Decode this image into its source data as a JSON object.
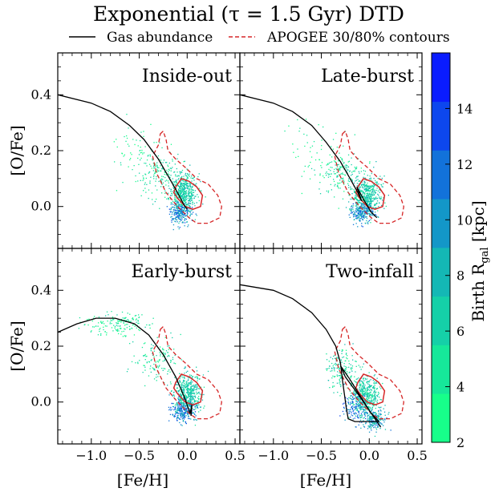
{
  "chart_data": {
    "type": "scatter",
    "title": "Exponential (τ = 1.5 Gyr) DTD",
    "legend": {
      "placement": "top",
      "entries": [
        {
          "label": "Gas abundance",
          "style": "solid",
          "color": "#000000"
        },
        {
          "label": "APOGEE 30/80% contours",
          "style": "dashed",
          "color": "#d62728"
        }
      ]
    },
    "xlabel": "[Fe/H]",
    "ylabel": "[O/Fe]",
    "xlim": [
      -1.35,
      0.55
    ],
    "ylim": [
      -0.15,
      0.55
    ],
    "xticks": [
      -1.0,
      -0.5,
      0.0,
      0.5
    ],
    "xtick_labels": [
      "−1.0",
      "−0.5",
      "0.0",
      "0.5"
    ],
    "yticks": [
      0.0,
      0.2,
      0.4
    ],
    "ytick_labels": [
      "0.0",
      "0.2",
      "0.4"
    ],
    "colorbar": {
      "label": "Birth R_gal [kpc]",
      "ticks": [
        2,
        4,
        6,
        8,
        10,
        12,
        14
      ],
      "range": [
        2,
        16
      ],
      "bins": 8,
      "colors": [
        "#17ff8a",
        "#16e89a",
        "#15d0a8",
        "#14b8b5",
        "#1397c8",
        "#1272da",
        "#0d47ee",
        "#0a1cff"
      ]
    },
    "panels": [
      {
        "title": "Inside-out",
        "gas_track": [
          [
            -1.35,
            0.4
          ],
          [
            -1.0,
            0.37
          ],
          [
            -0.8,
            0.34
          ],
          [
            -0.6,
            0.29
          ],
          [
            -0.45,
            0.24
          ],
          [
            -0.3,
            0.17
          ],
          [
            -0.2,
            0.11
          ],
          [
            -0.1,
            0.05
          ],
          [
            -0.04,
            0.01
          ],
          [
            0.0,
            -0.01
          ]
        ],
        "scatter_clusters": [
          {
            "center": [
              -0.05,
              0.05
            ],
            "spread": [
              0.12,
              0.06
            ],
            "n": 520,
            "rgal": [
              4,
              9
            ]
          },
          {
            "center": [
              -0.08,
              -0.02
            ],
            "spread": [
              0.1,
              0.03
            ],
            "n": 220,
            "rgal": [
              8,
              13
            ]
          },
          {
            "center": [
              -0.3,
              0.12
            ],
            "spread": [
              0.2,
              0.07
            ],
            "n": 160,
            "rgal": [
              3,
              7
            ]
          },
          {
            "center": [
              -0.55,
              0.2
            ],
            "spread": [
              0.25,
              0.08
            ],
            "n": 50,
            "rgal": [
              2,
              5
            ]
          }
        ]
      },
      {
        "title": "Late-burst",
        "gas_track": [
          [
            -1.35,
            0.4
          ],
          [
            -1.0,
            0.37
          ],
          [
            -0.8,
            0.34
          ],
          [
            -0.6,
            0.29
          ],
          [
            -0.45,
            0.23
          ],
          [
            -0.3,
            0.16
          ],
          [
            -0.2,
            0.1
          ],
          [
            -0.12,
            0.05
          ],
          [
            -0.08,
            0.02
          ],
          [
            -0.13,
            0.07
          ],
          [
            -0.05,
            0.02
          ],
          [
            0.02,
            -0.02
          ],
          [
            0.08,
            -0.04
          ]
        ],
        "scatter_clusters": [
          {
            "center": [
              -0.03,
              0.04
            ],
            "spread": [
              0.12,
              0.06
            ],
            "n": 520,
            "rgal": [
              4,
              9
            ]
          },
          {
            "center": [
              -0.08,
              -0.02
            ],
            "spread": [
              0.1,
              0.03
            ],
            "n": 220,
            "rgal": [
              8,
              13
            ]
          },
          {
            "center": [
              -0.3,
              0.12
            ],
            "spread": [
              0.2,
              0.07
            ],
            "n": 160,
            "rgal": [
              3,
              7
            ]
          },
          {
            "center": [
              -0.55,
              0.2
            ],
            "spread": [
              0.25,
              0.08
            ],
            "n": 50,
            "rgal": [
              2,
              5
            ]
          }
        ]
      },
      {
        "title": "Early-burst",
        "gas_track": [
          [
            -1.35,
            0.25
          ],
          [
            -1.15,
            0.28
          ],
          [
            -0.95,
            0.3
          ],
          [
            -0.75,
            0.3
          ],
          [
            -0.55,
            0.28
          ],
          [
            -0.4,
            0.24
          ],
          [
            -0.25,
            0.17
          ],
          [
            -0.12,
            0.09
          ],
          [
            -0.02,
            0.01
          ],
          [
            0.03,
            -0.04
          ],
          [
            0.05,
            -0.01
          ],
          [
            0.04,
            -0.05
          ]
        ],
        "scatter_clusters": [
          {
            "center": [
              0.0,
              0.03
            ],
            "spread": [
              0.12,
              0.06
            ],
            "n": 480,
            "rgal": [
              4,
              9
            ]
          },
          {
            "center": [
              -0.05,
              -0.03
            ],
            "spread": [
              0.1,
              0.03
            ],
            "n": 220,
            "rgal": [
              8,
              14
            ]
          },
          {
            "center": [
              -0.3,
              0.15
            ],
            "spread": [
              0.2,
              0.07
            ],
            "n": 130,
            "rgal": [
              3,
              7
            ]
          },
          {
            "center": [
              -0.75,
              0.28
            ],
            "spread": [
              0.3,
              0.03
            ],
            "n": 160,
            "rgal": [
              2,
              6
            ]
          }
        ]
      },
      {
        "title": "Two-infall",
        "gas_track": [
          [
            -1.35,
            0.42
          ],
          [
            -1.0,
            0.4
          ],
          [
            -0.8,
            0.37
          ],
          [
            -0.6,
            0.32
          ],
          [
            -0.45,
            0.26
          ],
          [
            -0.35,
            0.2
          ],
          [
            -0.3,
            0.14
          ],
          [
            -0.28,
            0.08
          ],
          [
            -0.26,
            0.03
          ],
          [
            -0.24,
            -0.02
          ],
          [
            -0.22,
            -0.06
          ],
          [
            -0.15,
            -0.07
          ],
          [
            0.05,
            -0.07
          ],
          [
            0.1,
            -0.07
          ],
          [
            0.02,
            -0.04
          ],
          [
            -0.1,
            0.02
          ],
          [
            -0.25,
            0.09
          ],
          [
            -0.3,
            0.13
          ],
          [
            -0.2,
            0.08
          ],
          [
            0.0,
            -0.03
          ],
          [
            0.12,
            -0.09
          ]
        ],
        "scatter_clusters": [
          {
            "center": [
              -0.05,
              0.02
            ],
            "spread": [
              0.12,
              0.06
            ],
            "n": 480,
            "rgal": [
              4,
              9
            ]
          },
          {
            "center": [
              0.05,
              -0.06
            ],
            "spread": [
              0.1,
              0.03
            ],
            "n": 220,
            "rgal": [
              6,
              12
            ]
          },
          {
            "center": [
              -0.3,
              0.12
            ],
            "spread": [
              0.15,
              0.06
            ],
            "n": 160,
            "rgal": [
              3,
              8
            ]
          },
          {
            "center": [
              -0.15,
              -0.02
            ],
            "spread": [
              0.1,
              0.04
            ],
            "n": 120,
            "rgal": [
              9,
              14
            ]
          }
        ]
      }
    ],
    "apogee_contour_80": [
      [
        -0.28,
        0.26
      ],
      [
        -0.25,
        0.27
      ],
      [
        -0.22,
        0.24
      ],
      [
        -0.2,
        0.2
      ],
      [
        -0.12,
        0.17
      ],
      [
        -0.02,
        0.14
      ],
      [
        0.1,
        0.1
      ],
      [
        0.22,
        0.08
      ],
      [
        0.32,
        0.04
      ],
      [
        0.36,
        0.0
      ],
      [
        0.34,
        -0.04
      ],
      [
        0.22,
        -0.06
      ],
      [
        0.1,
        -0.06
      ],
      [
        0.02,
        -0.04
      ],
      [
        -0.1,
        0.0
      ],
      [
        -0.22,
        0.05
      ],
      [
        -0.32,
        0.12
      ],
      [
        -0.36,
        0.18
      ],
      [
        -0.3,
        0.22
      ],
      [
        -0.28,
        0.26
      ]
    ],
    "apogee_contour_30": [
      [
        -0.12,
        0.07
      ],
      [
        -0.06,
        0.1
      ],
      [
        0.02,
        0.09
      ],
      [
        0.1,
        0.07
      ],
      [
        0.16,
        0.04
      ],
      [
        0.14,
        0.0
      ],
      [
        0.06,
        -0.01
      ],
      [
        -0.02,
        0.0
      ],
      [
        -0.1,
        0.03
      ],
      [
        -0.14,
        0.05
      ],
      [
        -0.12,
        0.07
      ]
    ]
  }
}
